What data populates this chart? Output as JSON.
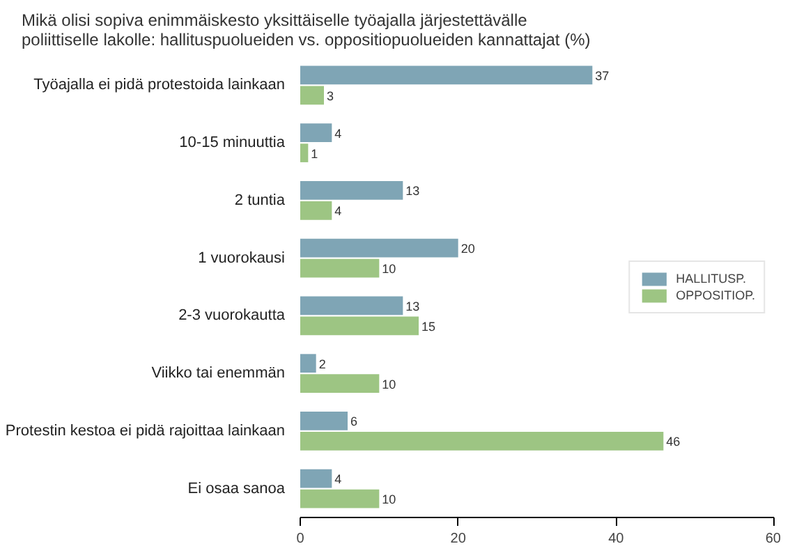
{
  "chart_data": {
    "type": "bar",
    "orientation": "horizontal",
    "title": "Mikä olisi sopiva enimmäiskesto yksittäiselle työajalla järjestettävälle poliittiselle lakolle: hallituspuolueiden vs. oppositiopuolueiden kannattajat (%)",
    "categories": [
      "Työajalla ei pidä protestoida lainkaan",
      "10-15 minuuttia",
      "2 tuntia",
      "1 vuorokausi",
      "2-3 vuorokautta",
      "Viikko tai enemmän",
      "Protestin kestoa ei pidä rajoittaa lainkaan",
      "Ei osaa sanoa"
    ],
    "series": [
      {
        "name": "HALLITUSP.",
        "color": "#7fa5b5",
        "values": [
          37,
          4,
          13,
          20,
          13,
          2,
          6,
          4
        ]
      },
      {
        "name": "OPPOSITIOP.",
        "color": "#9dc583",
        "values": [
          3,
          1,
          4,
          10,
          15,
          10,
          46,
          10
        ]
      }
    ],
    "xlim": [
      0,
      60
    ],
    "xticks": [
      0,
      20,
      40,
      60
    ],
    "data_labels": true,
    "legend": "right",
    "grid": false
  }
}
